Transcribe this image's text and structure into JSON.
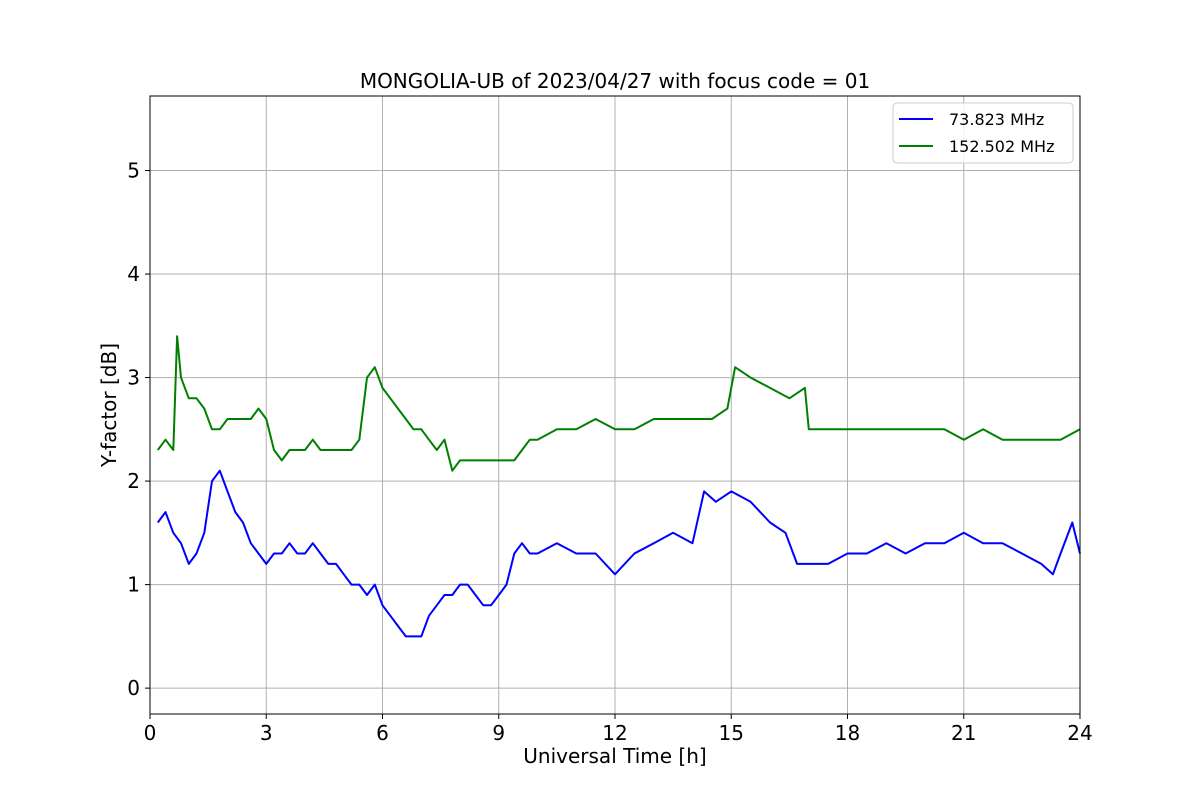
{
  "chart_data": {
    "type": "line",
    "title": "MONGOLIA-UB of 2023/04/27 with focus code = 01",
    "xlabel": "Universal Time [h]",
    "ylabel": "Y-factor [dB]",
    "xlim": [
      0,
      24
    ],
    "ylim": [
      -0.25,
      5.72
    ],
    "xticks": [
      0,
      3,
      6,
      9,
      12,
      15,
      18,
      21,
      24
    ],
    "yticks": [
      0,
      1,
      2,
      3,
      4,
      5
    ],
    "grid": true,
    "legend_position": "top-right",
    "series": [
      {
        "name": "73.823 MHz",
        "color": "#0000ff",
        "x": [
          0.2,
          0.4,
          0.6,
          0.8,
          1.0,
          1.2,
          1.4,
          1.6,
          1.8,
          2.0,
          2.2,
          2.4,
          2.6,
          2.8,
          3.0,
          3.2,
          3.4,
          3.6,
          3.8,
          4.0,
          4.2,
          4.4,
          4.6,
          4.8,
          5.0,
          5.2,
          5.4,
          5.6,
          5.8,
          6.0,
          6.2,
          6.4,
          6.6,
          6.8,
          7.0,
          7.2,
          7.4,
          7.6,
          7.8,
          8.0,
          8.2,
          8.4,
          8.6,
          8.8,
          9.0,
          9.2,
          9.4,
          9.6,
          9.8,
          10.0,
          10.5,
          11.0,
          11.5,
          12.0,
          12.5,
          13.0,
          13.5,
          14.0,
          14.3,
          14.6,
          15.0,
          15.5,
          16.0,
          16.4,
          16.7,
          17.0,
          17.5,
          18.0,
          18.5,
          19.0,
          19.5,
          20.0,
          20.5,
          21.0,
          21.5,
          22.0,
          22.5,
          23.0,
          23.3,
          23.5,
          23.8,
          24.0
        ],
        "y": [
          1.6,
          1.7,
          1.5,
          1.4,
          1.2,
          1.3,
          1.5,
          2.0,
          2.1,
          1.9,
          1.7,
          1.6,
          1.4,
          1.3,
          1.2,
          1.3,
          1.3,
          1.4,
          1.3,
          1.3,
          1.4,
          1.3,
          1.2,
          1.2,
          1.1,
          1.0,
          1.0,
          0.9,
          1.0,
          0.8,
          0.7,
          0.6,
          0.5,
          0.5,
          0.5,
          0.7,
          0.8,
          0.9,
          0.9,
          1.0,
          1.0,
          0.9,
          0.8,
          0.8,
          0.9,
          1.0,
          1.3,
          1.4,
          1.3,
          1.3,
          1.4,
          1.3,
          1.3,
          1.1,
          1.3,
          1.4,
          1.5,
          1.4,
          1.9,
          1.8,
          1.9,
          1.8,
          1.6,
          1.5,
          1.2,
          1.2,
          1.2,
          1.3,
          1.3,
          1.4,
          1.3,
          1.4,
          1.4,
          1.5,
          1.4,
          1.4,
          1.3,
          1.2,
          1.1,
          1.3,
          1.6,
          1.3
        ]
      },
      {
        "name": "152.502 MHz",
        "color": "#008000",
        "x": [
          0.2,
          0.4,
          0.6,
          0.7,
          0.8,
          1.0,
          1.2,
          1.4,
          1.6,
          1.8,
          2.0,
          2.2,
          2.4,
          2.6,
          2.8,
          3.0,
          3.2,
          3.4,
          3.6,
          3.8,
          4.0,
          4.2,
          4.4,
          4.6,
          4.8,
          5.0,
          5.2,
          5.4,
          5.6,
          5.8,
          6.0,
          6.2,
          6.4,
          6.6,
          6.8,
          7.0,
          7.2,
          7.4,
          7.6,
          7.8,
          8.0,
          8.2,
          8.4,
          8.6,
          8.8,
          9.0,
          9.2,
          9.4,
          9.6,
          9.8,
          10.0,
          10.5,
          11.0,
          11.5,
          12.0,
          12.5,
          13.0,
          13.5,
          14.0,
          14.5,
          14.9,
          15.1,
          15.5,
          16.0,
          16.5,
          16.9,
          17.0,
          17.5,
          18.0,
          18.5,
          19.0,
          19.5,
          20.0,
          20.5,
          21.0,
          21.5,
          22.0,
          22.5,
          23.0,
          23.5,
          24.0
        ],
        "y": [
          2.3,
          2.4,
          2.3,
          3.4,
          3.0,
          2.8,
          2.8,
          2.7,
          2.5,
          2.5,
          2.6,
          2.6,
          2.6,
          2.6,
          2.7,
          2.6,
          2.3,
          2.2,
          2.3,
          2.3,
          2.3,
          2.4,
          2.3,
          2.3,
          2.3,
          2.3,
          2.3,
          2.4,
          3.0,
          3.1,
          2.9,
          2.8,
          2.7,
          2.6,
          2.5,
          2.5,
          2.4,
          2.3,
          2.4,
          2.1,
          2.2,
          2.2,
          2.2,
          2.2,
          2.2,
          2.2,
          2.2,
          2.2,
          2.3,
          2.4,
          2.4,
          2.5,
          2.5,
          2.6,
          2.5,
          2.5,
          2.6,
          2.6,
          2.6,
          2.6,
          2.7,
          3.1,
          3.0,
          2.9,
          2.8,
          2.9,
          2.5,
          2.5,
          2.5,
          2.5,
          2.5,
          2.5,
          2.5,
          2.5,
          2.4,
          2.5,
          2.4,
          2.4,
          2.4,
          2.4,
          2.5
        ]
      }
    ]
  }
}
